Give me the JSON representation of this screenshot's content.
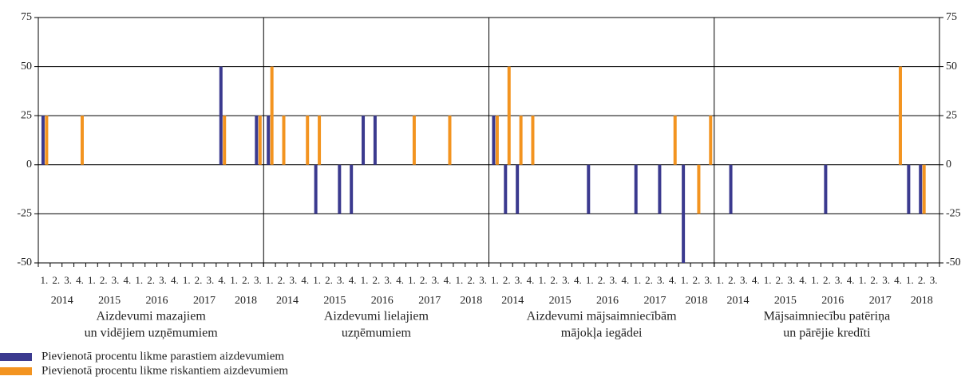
{
  "chart_data": {
    "type": "bar",
    "categories": [
      "1.",
      "2.",
      "3.",
      "4.",
      "1.",
      "2.",
      "3.",
      "4.",
      "1.",
      "2.",
      "3.",
      "4.",
      "1.",
      "2.",
      "3.",
      "4.",
      "1.",
      "2.",
      "3."
    ],
    "years": [
      "2014",
      "2015",
      "2016",
      "2017",
      "2018"
    ],
    "series": [
      {
        "name": "Pievienotā procentu likme parastiem aizdevumiem",
        "color": "#3b3a8f"
      },
      {
        "name": "Pievienotā procentu likme riskantiem aizdevumiem",
        "color": "#f39420"
      }
    ],
    "panels": [
      {
        "title": [
          "Aizdevumi mazajiem",
          "un vidējiem uzņēmumiem"
        ],
        "values": [
          [
            25,
            0,
            0,
            0,
            0,
            0,
            0,
            0,
            0,
            0,
            0,
            0,
            0,
            0,
            0,
            50,
            0,
            0,
            25
          ],
          [
            25,
            0,
            0,
            25,
            0,
            0,
            0,
            0,
            0,
            0,
            0,
            0,
            0,
            0,
            0,
            25,
            0,
            0,
            25
          ]
        ]
      },
      {
        "title": [
          "Aizdevumi lielajiem",
          "uzņēmumiem"
        ],
        "values": [
          [
            25,
            0,
            0,
            0,
            -25,
            0,
            -25,
            -25,
            25,
            25,
            0,
            0,
            0,
            0,
            0,
            0,
            0,
            0,
            0
          ],
          [
            50,
            25,
            0,
            25,
            25,
            0,
            0,
            0,
            0,
            0,
            0,
            0,
            25,
            0,
            0,
            25,
            0,
            0,
            0
          ]
        ]
      },
      {
        "title": [
          "Aizdevumi mājsaimniecībām",
          "mājokļa iegādei"
        ],
        "values": [
          [
            25,
            -25,
            -25,
            0,
            0,
            0,
            0,
            0,
            -25,
            0,
            0,
            0,
            -25,
            0,
            -25,
            0,
            -50,
            0,
            0
          ],
          [
            25,
            50,
            25,
            25,
            0,
            0,
            0,
            0,
            0,
            0,
            0,
            0,
            0,
            0,
            0,
            25,
            0,
            -25,
            25
          ]
        ]
      },
      {
        "title": [
          "Mājsaimniecību patēriņa",
          "un pārējie kredīti"
        ],
        "values": [
          [
            0,
            -25,
            0,
            0,
            0,
            0,
            0,
            0,
            0,
            -25,
            0,
            0,
            0,
            0,
            0,
            0,
            -25,
            -25,
            0
          ],
          [
            0,
            0,
            0,
            0,
            0,
            0,
            0,
            0,
            0,
            0,
            0,
            0,
            0,
            0,
            0,
            50,
            0,
            -25,
            0
          ]
        ]
      }
    ],
    "ylim": [
      -50,
      75
    ],
    "yticks": [
      -50,
      -25,
      0,
      25,
      50,
      75
    ],
    "grid": true
  }
}
